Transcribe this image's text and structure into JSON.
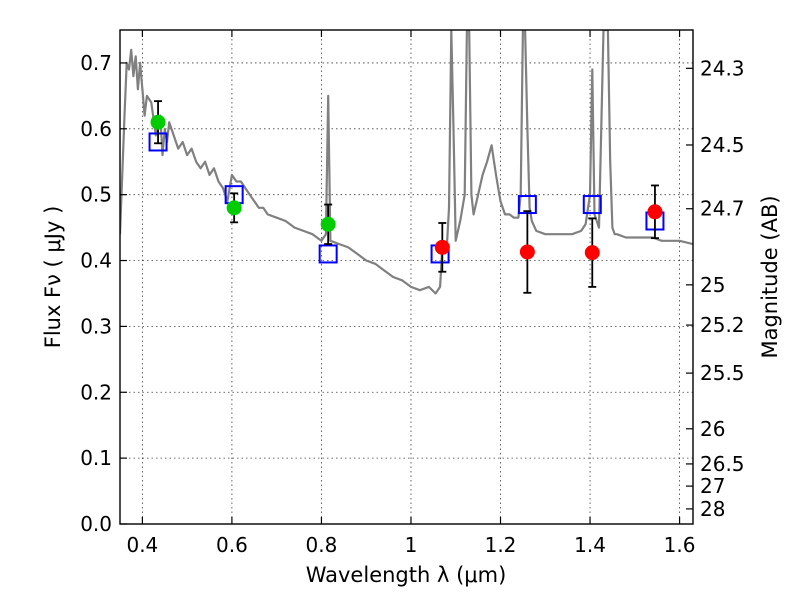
{
  "chart_data": {
    "type": "scatter",
    "title": "",
    "xlabel": "Wavelength  λ (μm)",
    "ylabel": "Flux  Fν  ( μJy )",
    "y2label": "Magnitude (AB)",
    "xlim": [
      0.35,
      1.63
    ],
    "ylim": [
      0.0,
      0.75
    ],
    "grid": true,
    "xticks": [
      0.4,
      0.6,
      0.8,
      1.0,
      1.2,
      1.4,
      1.6
    ],
    "xtick_labels": [
      "0.4",
      "0.6",
      "0.8",
      "1",
      "1.2",
      "1.4",
      "1.6"
    ],
    "yticks": [
      0.0,
      0.1,
      0.2,
      0.3,
      0.4,
      0.5,
      0.6,
      0.7
    ],
    "ytick_labels": [
      "0.0",
      "0.1",
      "0.2",
      "0.3",
      "0.4",
      "0.5",
      "0.6",
      "0.7"
    ],
    "right_axis_ticks": [
      {
        "mag": 24.3,
        "label": "24.3"
      },
      {
        "mag": 24.5,
        "label": "24.5"
      },
      {
        "mag": 24.7,
        "label": "24.7"
      },
      {
        "mag": 25.0,
        "label": "25"
      },
      {
        "mag": 25.2,
        "label": "25.2"
      },
      {
        "mag": 25.5,
        "label": "25.5"
      },
      {
        "mag": 26.0,
        "label": "26"
      },
      {
        "mag": 26.5,
        "label": "26.5"
      },
      {
        "mag": 27.0,
        "label": "27"
      },
      {
        "mag": 28.0,
        "label": "28"
      }
    ],
    "series": [
      {
        "kind": "line",
        "color": "#808080",
        "x": [
          0.35,
          0.36,
          0.365,
          0.37,
          0.375,
          0.38,
          0.385,
          0.39,
          0.395,
          0.4,
          0.405,
          0.41,
          0.42,
          0.43,
          0.44,
          0.445,
          0.45,
          0.455,
          0.46,
          0.47,
          0.48,
          0.49,
          0.5,
          0.51,
          0.52,
          0.53,
          0.54,
          0.55,
          0.56,
          0.57,
          0.58,
          0.59,
          0.6,
          0.61,
          0.62,
          0.63,
          0.64,
          0.65,
          0.66,
          0.67,
          0.68,
          0.7,
          0.72,
          0.74,
          0.76,
          0.78,
          0.8,
          0.81,
          0.815,
          0.82,
          0.84,
          0.86,
          0.88,
          0.9,
          0.92,
          0.94,
          0.96,
          0.98,
          1.0,
          1.02,
          1.04,
          1.055,
          1.06,
          1.065,
          1.07,
          1.08,
          1.085,
          1.09,
          1.095,
          1.1,
          1.11,
          1.12,
          1.125,
          1.13,
          1.135,
          1.14,
          1.15,
          1.16,
          1.17,
          1.18,
          1.19,
          1.2,
          1.21,
          1.22,
          1.23,
          1.24,
          1.245,
          1.25,
          1.255,
          1.26,
          1.265,
          1.27,
          1.28,
          1.3,
          1.32,
          1.34,
          1.36,
          1.38,
          1.39,
          1.4,
          1.405,
          1.41,
          1.42,
          1.43,
          1.44,
          1.445,
          1.45,
          1.455,
          1.46,
          1.48,
          1.5,
          1.52,
          1.54,
          1.56,
          1.58,
          1.6,
          1.63
        ],
        "y": [
          0.44,
          0.62,
          0.7,
          0.69,
          0.72,
          0.68,
          0.71,
          0.66,
          0.7,
          0.66,
          0.62,
          0.65,
          0.64,
          0.59,
          0.62,
          0.56,
          0.6,
          0.58,
          0.61,
          0.59,
          0.57,
          0.58,
          0.56,
          0.57,
          0.55,
          0.54,
          0.55,
          0.53,
          0.54,
          0.52,
          0.51,
          0.49,
          0.53,
          0.52,
          0.52,
          0.51,
          0.5,
          0.49,
          0.48,
          0.48,
          0.47,
          0.465,
          0.46,
          0.45,
          0.445,
          0.44,
          0.43,
          0.44,
          0.65,
          0.43,
          0.425,
          0.42,
          0.41,
          0.4,
          0.395,
          0.385,
          0.375,
          0.37,
          0.36,
          0.355,
          0.36,
          0.35,
          0.355,
          0.36,
          0.42,
          0.42,
          0.48,
          0.75,
          0.6,
          0.43,
          0.46,
          0.5,
          0.75,
          0.75,
          0.5,
          0.47,
          0.5,
          0.53,
          0.55,
          0.575,
          0.53,
          0.49,
          0.47,
          0.47,
          0.465,
          0.465,
          0.5,
          0.75,
          0.75,
          0.6,
          0.48,
          0.46,
          0.445,
          0.44,
          0.44,
          0.44,
          0.44,
          0.445,
          0.455,
          0.5,
          0.69,
          0.47,
          0.45,
          0.75,
          0.75,
          0.55,
          0.45,
          0.44,
          0.44,
          0.435,
          0.435,
          0.435,
          0.435,
          0.43,
          0.43,
          0.43,
          0.425
        ]
      },
      {
        "kind": "points",
        "marker": "square-open",
        "color": "#0000ff",
        "x": [
          0.435,
          0.605,
          0.815,
          1.065,
          1.26,
          1.405,
          1.545
        ],
        "y": [
          0.58,
          0.5,
          0.41,
          0.41,
          0.485,
          0.485,
          0.46
        ]
      },
      {
        "kind": "points",
        "marker": "circle",
        "color": "#00cc00",
        "x": [
          0.435,
          0.605,
          0.815
        ],
        "y": [
          0.61,
          0.48,
          0.455
        ],
        "err": [
          0.032,
          0.022,
          0.03
        ]
      },
      {
        "kind": "points",
        "marker": "circle",
        "color": "#ff0000",
        "x": [
          1.07,
          1.26,
          1.405,
          1.545
        ],
        "y": [
          0.42,
          0.413,
          0.412,
          0.474
        ],
        "err": [
          0.037,
          0.062,
          0.052,
          0.04
        ]
      }
    ]
  }
}
